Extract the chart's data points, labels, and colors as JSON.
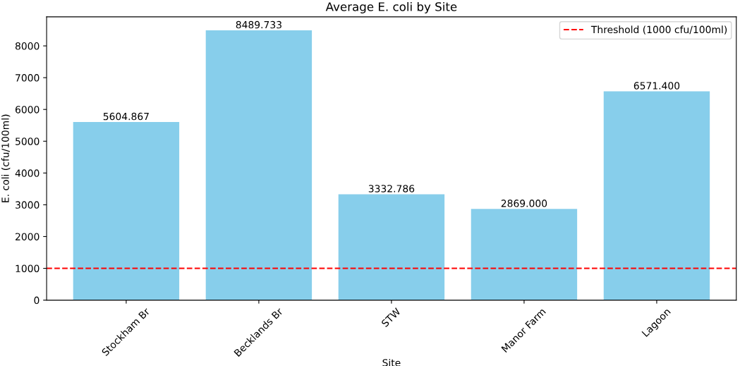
{
  "chart_data": {
    "type": "bar",
    "title": "Average E. coli by Site",
    "xlabel": "Site",
    "ylabel": "E. coli (cfu/100ml)",
    "categories": [
      "Stockham Br",
      "Becklands Br",
      "STW",
      "Manor Farm",
      "Lagoon"
    ],
    "values": [
      5604.867,
      8489.733,
      3332.786,
      2869.0,
      6571.4
    ],
    "value_labels": [
      "5604.867",
      "8489.733",
      "3332.786",
      "2869.000",
      "6571.400"
    ],
    "color": "#87ceeb",
    "ylim": [
      0,
      8914.2
    ],
    "yticks": [
      0,
      1000,
      2000,
      3000,
      4000,
      5000,
      6000,
      7000,
      8000
    ],
    "ref_lines": [
      {
        "axis": "y",
        "value": 1000,
        "label": "Threshold (1000 cfu/100ml)",
        "color": "#ff0000",
        "line_style": "dashed"
      }
    ],
    "legend": "top right",
    "grid": false
  }
}
